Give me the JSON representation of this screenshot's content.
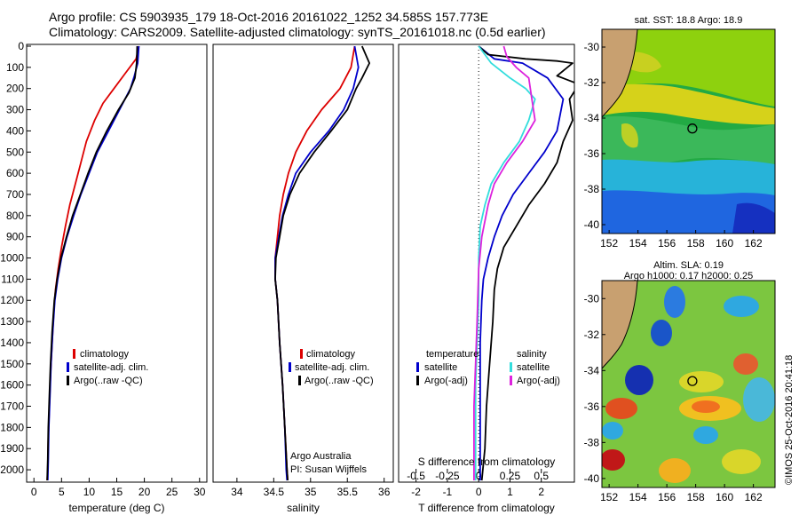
{
  "header": {
    "line1": "Argo profile: CS 5903935_179 18-Oct-2016 20161022_1252 34.585S 157.773E",
    "line2": "Climatology: CARS2009. Satellite-adjusted climatology: synTS_20161018.nc (0.5d earlier)"
  },
  "credit": "©IMOS 25-Oct-2016 20:41:18",
  "colors": {
    "climatology": "#dd0000",
    "satellite": "#0000cc",
    "argo": "#000000",
    "sat_salt": "#33dddd",
    "argo_salt": "#dd22dd"
  },
  "chart_data": [
    {
      "id": "temperature",
      "type": "line",
      "xlabel": "temperature (deg C)",
      "ylabel": "",
      "xlim": [
        -1,
        31
      ],
      "ylim": [
        2050,
        0
      ],
      "xticks": [
        0,
        5,
        10,
        15,
        20,
        25,
        30
      ],
      "yticks": [
        0,
        100,
        200,
        300,
        400,
        500,
        600,
        700,
        800,
        900,
        1000,
        1100,
        1200,
        1300,
        1400,
        1500,
        1600,
        1700,
        1800,
        1900,
        2000
      ],
      "legend": {
        "position": "lower-right",
        "entries": [
          "climatology",
          "satellite-adj. clim.",
          "Argo(..raw -QC)"
        ]
      },
      "series": [
        {
          "name": "climatology",
          "color": "#dd0000",
          "points": [
            [
              19.0,
              0
            ],
            [
              18.5,
              60
            ],
            [
              16.5,
              130
            ],
            [
              14.5,
              200
            ],
            [
              12.5,
              270
            ],
            [
              11.0,
              350
            ],
            [
              9.5,
              450
            ],
            [
              8.5,
              550
            ],
            [
              7.5,
              650
            ],
            [
              6.5,
              750
            ],
            [
              5.7,
              850
            ],
            [
              5.0,
              950
            ],
            [
              4.4,
              1050
            ],
            [
              3.9,
              1150
            ],
            [
              3.6,
              1250
            ],
            [
              3.3,
              1400
            ],
            [
              3.0,
              1550
            ],
            [
              2.8,
              1700
            ],
            [
              2.6,
              1850
            ],
            [
              2.5,
              2000
            ],
            [
              2.4,
              2050
            ]
          ]
        },
        {
          "name": "satellite-adj. clim.",
          "color": "#0000cc",
          "points": [
            [
              19.0,
              0
            ],
            [
              18.8,
              80
            ],
            [
              18.2,
              140
            ],
            [
              17.5,
              200
            ],
            [
              15.5,
              300
            ],
            [
              13.5,
              400
            ],
            [
              11.5,
              500
            ],
            [
              10.0,
              600
            ],
            [
              8.5,
              700
            ],
            [
              7.2,
              800
            ],
            [
              6.0,
              900
            ],
            [
              5.0,
              1000
            ],
            [
              4.3,
              1100
            ],
            [
              3.8,
              1200
            ],
            [
              3.4,
              1350
            ],
            [
              3.1,
              1500
            ],
            [
              2.9,
              1650
            ],
            [
              2.7,
              1800
            ],
            [
              2.6,
              1950
            ],
            [
              2.5,
              2050
            ]
          ]
        },
        {
          "name": "Argo(..raw -QC)",
          "color": "#000000",
          "points": [
            [
              18.7,
              0
            ],
            [
              18.6,
              80
            ],
            [
              18.3,
              150
            ],
            [
              17.2,
              220
            ],
            [
              15.3,
              300
            ],
            [
              13.2,
              400
            ],
            [
              11.3,
              500
            ],
            [
              9.8,
              600
            ],
            [
              8.4,
              700
            ],
            [
              7.0,
              800
            ],
            [
              5.9,
              900
            ],
            [
              4.9,
              1000
            ],
            [
              4.2,
              1100
            ],
            [
              3.7,
              1200
            ],
            [
              3.3,
              1350
            ],
            [
              3.0,
              1500
            ],
            [
              2.8,
              1650
            ],
            [
              2.6,
              1800
            ],
            [
              2.5,
              1950
            ],
            [
              2.4,
              2050
            ]
          ]
        }
      ]
    },
    {
      "id": "salinity",
      "type": "line",
      "xlabel": "salinity",
      "ylabel": "",
      "xlim": [
        33.7,
        36.1
      ],
      "ylim": [
        2050,
        0
      ],
      "xticks": [
        34,
        34.5,
        35,
        35.5,
        36
      ],
      "legend": {
        "position": "lower-right",
        "entries": [
          "climatology",
          "satellite-adj. clim.",
          "Argo(..raw -QC)"
        ]
      },
      "annotation": [
        "Argo Australia",
        "PI: Susan Wijffels"
      ],
      "series": [
        {
          "name": "climatology",
          "color": "#dd0000",
          "points": [
            [
              35.6,
              0
            ],
            [
              35.55,
              100
            ],
            [
              35.4,
              200
            ],
            [
              35.15,
              300
            ],
            [
              34.95,
              400
            ],
            [
              34.8,
              500
            ],
            [
              34.7,
              600
            ],
            [
              34.63,
              700
            ],
            [
              34.58,
              800
            ],
            [
              34.55,
              900
            ],
            [
              34.52,
              1000
            ],
            [
              34.52,
              1100
            ],
            [
              34.55,
              1200
            ],
            [
              34.58,
              1400
            ],
            [
              34.62,
              1600
            ],
            [
              34.65,
              1800
            ],
            [
              34.68,
              2000
            ],
            [
              34.69,
              2050
            ]
          ]
        },
        {
          "name": "satellite-adj. clim.",
          "color": "#0000cc",
          "points": [
            [
              35.6,
              0
            ],
            [
              35.65,
              100
            ],
            [
              35.58,
              200
            ],
            [
              35.45,
              300
            ],
            [
              35.25,
              400
            ],
            [
              35.0,
              500
            ],
            [
              34.8,
              600
            ],
            [
              34.7,
              700
            ],
            [
              34.62,
              800
            ],
            [
              34.57,
              900
            ],
            [
              34.52,
              1000
            ],
            [
              34.52,
              1100
            ],
            [
              34.55,
              1200
            ],
            [
              34.58,
              1400
            ],
            [
              34.62,
              1600
            ],
            [
              34.65,
              1800
            ],
            [
              34.67,
              2000
            ],
            [
              34.68,
              2050
            ]
          ]
        },
        {
          "name": "Argo(..raw -QC)",
          "color": "#000000",
          "points": [
            [
              35.7,
              0
            ],
            [
              35.8,
              80
            ],
            [
              35.7,
              150
            ],
            [
              35.62,
              200
            ],
            [
              35.5,
              300
            ],
            [
              35.28,
              400
            ],
            [
              35.05,
              500
            ],
            [
              34.85,
              600
            ],
            [
              34.72,
              700
            ],
            [
              34.63,
              800
            ],
            [
              34.58,
              900
            ],
            [
              34.53,
              1000
            ],
            [
              34.52,
              1100
            ],
            [
              34.55,
              1200
            ],
            [
              34.58,
              1400
            ],
            [
              34.62,
              1600
            ],
            [
              34.65,
              1800
            ],
            [
              34.68,
              2000
            ],
            [
              34.69,
              2050
            ]
          ]
        }
      ]
    },
    {
      "id": "difference",
      "type": "line",
      "xlabel": "T difference from climatology",
      "ylabel": "",
      "top_axis_label": "S difference from climatology",
      "xlim": [
        -2.5,
        3.0
      ],
      "ylim": [
        2050,
        0
      ],
      "xticks": [
        -2,
        -1,
        0,
        1,
        2
      ],
      "s_ticks": [
        {
          "label": "-0.5",
          "T": -2
        },
        {
          "label": "-0.25",
          "T": -1
        },
        {
          "label": "0",
          "T": 0
        },
        {
          "label": "0.25",
          "T": 1
        },
        {
          "label": "0.5",
          "T": 2
        }
      ],
      "legend": {
        "position": "bottom",
        "groups": [
          {
            "title": "temperature",
            "entries": [
              "satellite",
              "Argo(-adj)"
            ]
          },
          {
            "title": "salinity",
            "entries": [
              "satellite",
              "Argo(-adj)"
            ]
          }
        ]
      },
      "series": [
        {
          "name": "satellite (temperature)",
          "color": "#0000cc",
          "points": [
            [
              0.0,
              0
            ],
            [
              0.5,
              60
            ],
            [
              1.4,
              80
            ],
            [
              2.2,
              150
            ],
            [
              2.7,
              250
            ],
            [
              2.5,
              400
            ],
            [
              2.1,
              500
            ],
            [
              1.6,
              600
            ],
            [
              1.1,
              700
            ],
            [
              0.75,
              800
            ],
            [
              0.5,
              900
            ],
            [
              0.3,
              1000
            ],
            [
              0.15,
              1100
            ],
            [
              0.1,
              1200
            ],
            [
              0.05,
              1400
            ],
            [
              0.05,
              1600
            ],
            [
              0.05,
              1800
            ],
            [
              0.05,
              2000
            ],
            [
              0.05,
              2050
            ]
          ]
        },
        {
          "name": "Argo(-adj) (temperature)",
          "color": "#000000",
          "points": [
            [
              0.0,
              0
            ],
            [
              0.3,
              40
            ],
            [
              1.5,
              60
            ],
            [
              2.5,
              70
            ],
            [
              3.0,
              80
            ],
            [
              2.5,
              140
            ],
            [
              3.2,
              180
            ],
            [
              2.9,
              250
            ],
            [
              3.0,
              350
            ],
            [
              2.7,
              450
            ],
            [
              2.5,
              550
            ],
            [
              2.1,
              650
            ],
            [
              1.6,
              750
            ],
            [
              1.2,
              850
            ],
            [
              0.8,
              950
            ],
            [
              0.6,
              1050
            ],
            [
              0.5,
              1150
            ],
            [
              0.45,
              1300
            ],
            [
              0.35,
              1500
            ],
            [
              0.25,
              1700
            ],
            [
              0.2,
              1900
            ],
            [
              0.1,
              2050
            ]
          ]
        },
        {
          "name": "satellite (salinity)",
          "color": "#33dddd",
          "points": [
            [
              0.0,
              0
            ],
            [
              0.4,
              80
            ],
            [
              1.0,
              150
            ],
            [
              1.5,
              200
            ],
            [
              1.8,
              250
            ],
            [
              1.6,
              350
            ],
            [
              1.3,
              450
            ],
            [
              0.8,
              550
            ],
            [
              0.4,
              650
            ],
            [
              0.2,
              750
            ],
            [
              0.05,
              850
            ],
            [
              0.0,
              1000
            ],
            [
              0.0,
              1200
            ],
            [
              -0.05,
              1400
            ],
            [
              -0.1,
              1600
            ],
            [
              -0.1,
              1800
            ],
            [
              -0.1,
              1950
            ],
            [
              -0.1,
              2050
            ]
          ]
        },
        {
          "name": "Argo(-adj) (salinity)",
          "color": "#dd22dd",
          "points": [
            [
              0.8,
              0
            ],
            [
              0.9,
              50
            ],
            [
              1.2,
              100
            ],
            [
              1.6,
              150
            ],
            [
              1.7,
              250
            ],
            [
              1.8,
              350
            ],
            [
              1.4,
              450
            ],
            [
              0.9,
              550
            ],
            [
              0.5,
              650
            ],
            [
              0.3,
              750
            ],
            [
              0.1,
              900
            ],
            [
              0.0,
              1050
            ],
            [
              -0.05,
              1300
            ],
            [
              -0.1,
              1500
            ],
            [
              -0.15,
              1700
            ],
            [
              -0.15,
              1900
            ],
            [
              -0.15,
              2050
            ]
          ]
        }
      ]
    },
    {
      "id": "sst-map",
      "type": "heatmap",
      "title": "sat. SST: 18.8 Argo: 18.9",
      "xlim": [
        151.5,
        163.5
      ],
      "ylim": [
        -40.5,
        -29
      ],
      "xticks": [
        152,
        154,
        156,
        158,
        160,
        162
      ],
      "yticks": [
        -30,
        -32,
        -34,
        -36,
        -38,
        -40
      ],
      "marker": {
        "lon": 157.77,
        "lat": -34.585
      }
    },
    {
      "id": "sla-map",
      "type": "heatmap",
      "title": "Altim. SLA: 0.19",
      "subtitle": "Argo h1000: 0.17 h2000: 0.25",
      "xlim": [
        151.5,
        163.5
      ],
      "ylim": [
        -40.5,
        -29
      ],
      "xticks": [
        152,
        154,
        156,
        158,
        160,
        162
      ],
      "yticks": [
        -30,
        -32,
        -34,
        -36,
        -38,
        -40
      ],
      "marker": {
        "lon": 157.77,
        "lat": -34.585
      }
    }
  ]
}
